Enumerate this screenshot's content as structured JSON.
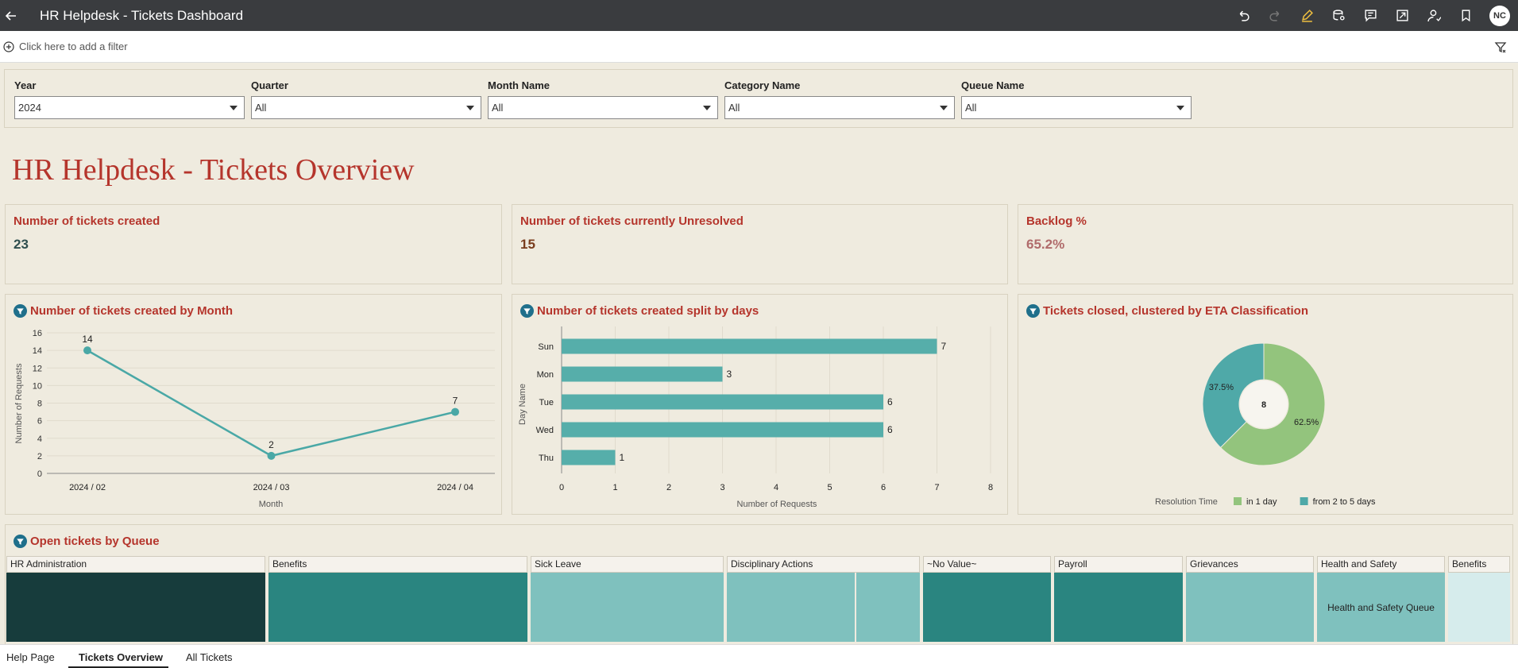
{
  "topbar": {
    "back_icon": "arrow-left-icon",
    "title": "HR Helpdesk - Tickets Dashboard",
    "avatar_initials": "NC"
  },
  "filterbar": {
    "add_filter_text": "Click here to add a filter"
  },
  "prompts": [
    {
      "label": "Year",
      "value": "2024"
    },
    {
      "label": "Quarter",
      "value": "All"
    },
    {
      "label": "Month Name",
      "value": "All"
    },
    {
      "label": "Category Name",
      "value": "All"
    },
    {
      "label": "Queue Name",
      "value": "All"
    }
  ],
  "page_title": "HR Helpdesk - Tickets Overview",
  "kpis": [
    {
      "title": "Number of tickets created",
      "value": "23",
      "color": "#2f4f4f"
    },
    {
      "title": "Number of tickets currently Unresolved",
      "value": "15",
      "color": "#7a3d1e"
    },
    {
      "title": "Backlog %",
      "value": "65.2%",
      "color": "#b06b6b"
    }
  ],
  "chart_data": [
    {
      "type": "line",
      "title": "Number of tickets created by Month",
      "categories": [
        "2024 / 02",
        "2024 / 03",
        "2024 / 04"
      ],
      "values": [
        14,
        2,
        7
      ],
      "xlabel": "Month",
      "ylabel": "Number of Requests",
      "ylim": [
        0,
        16
      ],
      "yticks": [
        "0",
        "2",
        "4",
        "6",
        "8",
        "10",
        "12",
        "14",
        "16"
      ],
      "color": "#4aa8a6"
    },
    {
      "type": "bar",
      "orientation": "horizontal",
      "title": "Number of tickets created split by days",
      "categories": [
        "Sun",
        "Mon",
        "Tue",
        "Wed",
        "Thu"
      ],
      "values": [
        7,
        3,
        6,
        6,
        1
      ],
      "xlabel": "Number of Requests",
      "ylabel": "Day Name",
      "xlim": [
        0,
        8
      ],
      "xticks": [
        "0",
        "1",
        "2",
        "3",
        "4",
        "5",
        "6",
        "7",
        "8"
      ],
      "color": "#56aeaa"
    },
    {
      "type": "pie",
      "donut": true,
      "title": "Tickets closed, clustered by ETA Classification",
      "center_label": "8",
      "legend_title": "Resolution Time",
      "slices": [
        {
          "name": "in 1 day",
          "value": 62.5,
          "label": "62.5%",
          "color": "#93c47d"
        },
        {
          "name": "from 2 to 5 days",
          "value": 37.5,
          "label": "37.5%",
          "color": "#4fa9a8"
        }
      ]
    }
  ],
  "treemap": {
    "title": "Open tickets by Queue",
    "groups": [
      {
        "label": "HR Administration",
        "color": "#173c3c"
      },
      {
        "label": "Benefits",
        "color": "#2a8580"
      },
      {
        "label": "Sick Leave",
        "color": "#7fc1be"
      },
      {
        "label": "Disciplinary Actions",
        "color": "#7fc1be"
      },
      {
        "label": "~No Value~",
        "color": "#2a8580"
      },
      {
        "label": "Payroll",
        "color": "#2a8580"
      },
      {
        "label": "Grievances",
        "color": "#7fc1be"
      },
      {
        "label": "Health and Safety",
        "color": "#7fc1be",
        "inner_label": "Health and Safety Queue"
      },
      {
        "label": "Benefits",
        "color": "#d6ecec"
      }
    ]
  },
  "tabs": [
    {
      "label": "Help Page"
    },
    {
      "label": "Tickets Overview",
      "active": true
    },
    {
      "label": "All Tickets"
    }
  ]
}
